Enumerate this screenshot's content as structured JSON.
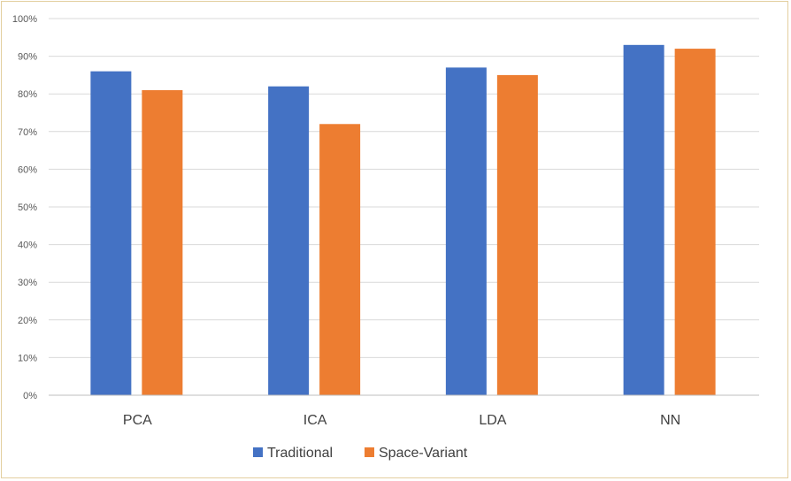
{
  "chart_data": {
    "type": "bar",
    "categories": [
      "PCA",
      "ICA",
      "LDA",
      "NN"
    ],
    "series": [
      {
        "name": "Traditional",
        "values": [
          86,
          82,
          87,
          93
        ],
        "color": "#4472c4"
      },
      {
        "name": "Space-Variant",
        "values": [
          81,
          72,
          85,
          92
        ],
        "color": "#ed7d31"
      }
    ],
    "ylim": [
      0,
      100
    ],
    "yticks": [
      0,
      10,
      20,
      30,
      40,
      50,
      60,
      70,
      80,
      90,
      100
    ],
    "ytick_labels": [
      "0%",
      "10%",
      "20%",
      "30%",
      "40%",
      "50%",
      "60%",
      "70%",
      "80%",
      "90%",
      "100%"
    ],
    "grid": true,
    "legend_position": "bottom",
    "colors": {
      "grid": "#d9d9d9",
      "axis": "#bfbfbf",
      "frame_border": "#e3cf9f"
    }
  }
}
